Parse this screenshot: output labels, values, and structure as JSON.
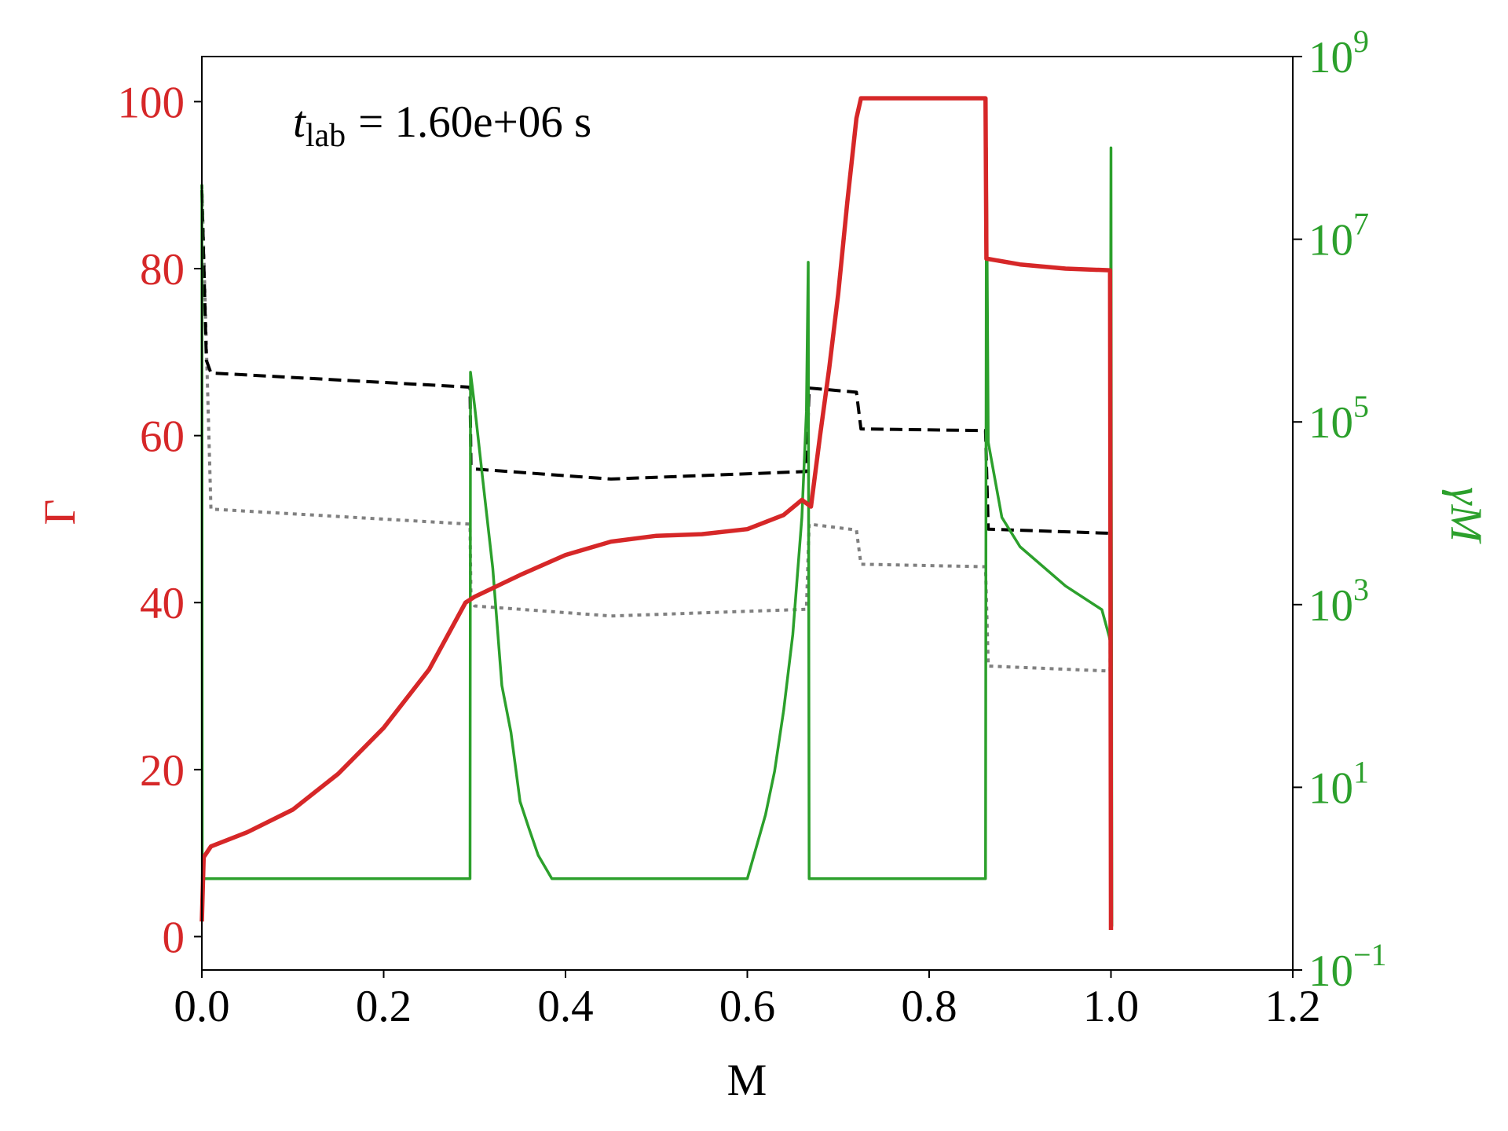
{
  "chart_data": {
    "type": "line",
    "annotation": {
      "symbol": "t",
      "subscript": "lab",
      "text": "= 1.60e+06 s"
    },
    "xlabel": "M",
    "ylabel": "Γ",
    "y2label": "γM",
    "ylabel_color": "#d62728",
    "y2label_color": "#2ca02c",
    "xlim": [
      0,
      1.2
    ],
    "xticks": [
      {
        "value": 0,
        "label": "0.0"
      },
      0.2,
      0.4,
      0.6,
      0.8,
      {
        "value": 1,
        "label": "1.0"
      },
      1.2
    ],
    "ylim": [
      -4,
      105.4
    ],
    "yticks": [
      0,
      20,
      40,
      60,
      80,
      100
    ],
    "y2lim": [
      0.1,
      1000000000
    ],
    "y2scale": "log",
    "y2ticks": [
      {
        "value": 0.1,
        "label": "10",
        "exponent": "−1"
      },
      {
        "value": 10,
        "label": "10",
        "exponent": "1"
      },
      {
        "value": 1000,
        "label": "10",
        "exponent": "3"
      },
      {
        "value": 100000,
        "label": "10",
        "exponent": "5"
      },
      {
        "value": 10000000,
        "label": "10",
        "exponent": "7"
      },
      {
        "value": 1000000000,
        "label": "10",
        "exponent": "9"
      }
    ],
    "series": [
      {
        "color": "#808080",
        "style": "dotted",
        "axis": "y",
        "x": [
          0,
          0.01,
          0.295,
          0.296,
          0.3,
          0.45,
          0.665,
          0.668,
          0.72,
          0.725,
          0.862,
          0.865,
          0.999,
          1.0
        ],
        "values": [
          90,
          51.2,
          49.4,
          40.5,
          39.6,
          38.4,
          39.2,
          49.4,
          48.7,
          44.6,
          44.3,
          32.4,
          31.8,
          66
        ]
      },
      {
        "color": "#000000",
        "style": "dashed",
        "axis": "y",
        "x": [
          0,
          0.005,
          0.01,
          0.295,
          0.296,
          0.3,
          0.45,
          0.665,
          0.668,
          0.72,
          0.725,
          0.862,
          0.865,
          0.999,
          1.0
        ],
        "values": [
          89.4,
          69,
          67.5,
          65.8,
          56.5,
          56,
          54.8,
          55.7,
          65.7,
          65.2,
          60.8,
          60.6,
          48.8,
          48.3,
          66
        ]
      },
      {
        "color": "#2ca02c",
        "style": "solid",
        "axis": "y2",
        "x": [
          0,
          0.0005,
          0.295,
          0.2955,
          0.3,
          0.31,
          0.32,
          0.33,
          0.34,
          0.35,
          0.36,
          0.37,
          0.385,
          0.6,
          0.62,
          0.63,
          0.64,
          0.65,
          0.66,
          0.665,
          0.667,
          0.668,
          0.862,
          0.863,
          0.865,
          0.88,
          0.9,
          0.95,
          0.99,
          0.998,
          0.999,
          1.0,
          1.001
        ],
        "values": [
          40000000,
          1,
          1,
          350000,
          150000,
          19000,
          2500,
          130,
          40,
          7,
          3.5,
          1.8,
          1,
          1,
          5,
          15,
          70,
          470,
          9000,
          130000,
          5600000,
          1,
          1,
          100000000,
          60000,
          9000,
          4300,
          1600,
          880,
          450,
          400,
          100000000,
          0.3
        ]
      },
      {
        "color": "#d62728",
        "style": "solid",
        "axis": "y",
        "x": [
          0,
          0.002,
          0.01,
          0.05,
          0.1,
          0.15,
          0.2,
          0.25,
          0.29,
          0.3,
          0.35,
          0.4,
          0.45,
          0.5,
          0.55,
          0.6,
          0.64,
          0.66,
          0.67,
          0.68,
          0.69,
          0.7,
          0.71,
          0.72,
          0.725,
          0.862,
          0.863,
          0.9,
          0.95,
          0.999,
          1.0
        ],
        "values": [
          1.8,
          9.5,
          10.8,
          12.5,
          15.2,
          19.5,
          25,
          32,
          40,
          40.7,
          43.3,
          45.7,
          47.3,
          48,
          48.2,
          48.8,
          50.5,
          52.3,
          51.5,
          60,
          68,
          77,
          88,
          98,
          100.4,
          100.4,
          81.2,
          80.5,
          80,
          79.8,
          0.8
        ]
      }
    ]
  }
}
